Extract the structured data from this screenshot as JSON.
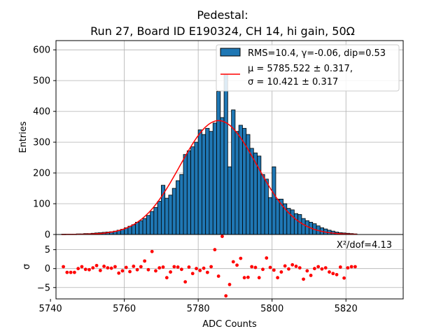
{
  "chart_data": [
    {
      "type": "bar",
      "panel": "histogram",
      "title_line1": "Pedestal:",
      "title_line2": "Run 27, Board ID E190324, CH 14, hi gain, 50Ω",
      "xlabel": "",
      "ylabel": "Entries",
      "xlim": [
        5741.5,
        5835.5
      ],
      "ylim": [
        0,
        630
      ],
      "yticks": [
        0,
        100,
        200,
        300,
        400,
        500,
        600
      ],
      "grid": true,
      "bin_width": 1,
      "bin_starts": [
        5743,
        5744,
        5745,
        5746,
        5747,
        5748,
        5749,
        5750,
        5751,
        5752,
        5753,
        5754,
        5755,
        5756,
        5757,
        5758,
        5759,
        5760,
        5761,
        5762,
        5763,
        5764,
        5765,
        5766,
        5767,
        5768,
        5769,
        5770,
        5771,
        5772,
        5773,
        5774,
        5775,
        5776,
        5777,
        5778,
        5779,
        5780,
        5781,
        5782,
        5783,
        5784,
        5785,
        5786,
        5787,
        5788,
        5789,
        5790,
        5791,
        5792,
        5793,
        5794,
        5795,
        5796,
        5797,
        5798,
        5799,
        5800,
        5801,
        5802,
        5803,
        5804,
        5805,
        5806,
        5807,
        5808,
        5809,
        5810,
        5811,
        5812,
        5813,
        5814,
        5815,
        5816,
        5817,
        5818,
        5819,
        5820,
        5821,
        5822
      ],
      "counts": [
        1,
        1,
        1,
        1,
        2,
        2,
        3,
        3,
        4,
        5,
        6,
        7,
        8,
        9,
        11,
        14,
        17,
        22,
        27,
        32,
        40,
        45,
        52,
        62,
        75,
        88,
        108,
        160,
        118,
        128,
        150,
        175,
        195,
        260,
        272,
        285,
        300,
        340,
        325,
        345,
        335,
        362,
        465,
        380,
        520,
        220,
        405,
        335,
        355,
        345,
        325,
        280,
        265,
        255,
        195,
        180,
        120,
        220,
        115,
        115,
        100,
        85,
        80,
        68,
        65,
        52,
        45,
        40,
        35,
        28,
        22,
        18,
        14,
        11,
        8,
        6,
        5,
        4,
        3,
        2
      ],
      "legend": [
        {
          "label": "RMS=10.4, γ=-0.06, dip=0.53",
          "kind": "patch"
        },
        {
          "label": "μ = 5785.522 ± 0.317,",
          "kind": "line"
        },
        {
          "label": "σ = 10.421 ± 0.317",
          "kind": "none"
        }
      ],
      "legend_location": "upper right",
      "fit": {
        "type": "gaussian",
        "mu": 5785.522,
        "sigma": 10.421,
        "amplitude": 370,
        "x_range": [
          5743,
          5823
        ],
        "color": "#ff0000"
      },
      "colors": {
        "bar_fill": "#1f77b4",
        "bar_edge": "#000000",
        "fit_line": "#ff0000"
      }
    },
    {
      "type": "scatter",
      "panel": "residuals",
      "xlabel": "ADC Counts",
      "ylabel": "σ",
      "xlim": [
        5741.5,
        5835.5
      ],
      "ylim": [
        -8,
        9
      ],
      "xticks": [
        5740,
        5760,
        5780,
        5800,
        5820
      ],
      "yticks": [
        -5,
        0,
        5
      ],
      "grid": true,
      "annotation": "X²/dof=4.13",
      "x": [
        5743.5,
        5744.5,
        5745.5,
        5746.5,
        5747.5,
        5748.5,
        5749.5,
        5750.5,
        5751.5,
        5752.5,
        5753.5,
        5754.5,
        5755.5,
        5756.5,
        5757.5,
        5758.5,
        5759.5,
        5760.5,
        5761.5,
        5762.5,
        5763.5,
        5764.5,
        5765.5,
        5766.5,
        5767.5,
        5768.5,
        5769.5,
        5770.5,
        5771.5,
        5772.5,
        5773.5,
        5774.5,
        5775.5,
        5776.5,
        5777.5,
        5778.5,
        5779.5,
        5780.5,
        5781.5,
        5782.5,
        5783.5,
        5784.5,
        5785.5,
        5786.5,
        5787.5,
        5788.5,
        5789.5,
        5790.5,
        5791.5,
        5792.5,
        5793.5,
        5794.5,
        5795.5,
        5796.5,
        5797.5,
        5798.5,
        5799.5,
        5800.5,
        5801.5,
        5802.5,
        5803.5,
        5804.5,
        5805.5,
        5806.5,
        5807.5,
        5808.5,
        5809.5,
        5810.5,
        5811.5,
        5812.5,
        5813.5,
        5814.5,
        5815.5,
        5816.5,
        5817.5,
        5818.5,
        5819.5,
        5820.5,
        5821.5,
        5822.5
      ],
      "y": [
        0.5,
        -1.0,
        -1.0,
        -1.0,
        0.0,
        0.5,
        -0.2,
        -0.3,
        0.2,
        0.8,
        -0.5,
        0.6,
        0.2,
        0.1,
        0.5,
        -1.2,
        -0.6,
        0.3,
        -0.8,
        0.6,
        -0.3,
        0.5,
        2.0,
        -0.3,
        4.5,
        -0.6,
        0.2,
        0.4,
        -2.4,
        -0.9,
        0.5,
        0.4,
        -0.2,
        -3.5,
        0.4,
        -1.3,
        0.0,
        -0.5,
        0.1,
        -1.0,
        0.5,
        5.0,
        -2.0,
        8.5,
        -7.2,
        -4.2,
        1.8,
        0.9,
        2.7,
        -2.4,
        -2.3,
        0.5,
        0.3,
        -2.4,
        -0.2,
        2.8,
        0.3,
        -0.4,
        -2.4,
        -0.9,
        0.7,
        -0.1,
        1.0,
        0.6,
        0.2,
        -2.8,
        -0.6,
        -1.8,
        0.0,
        0.5,
        -0.1,
        0.2,
        -0.9,
        -1.3,
        -1.6,
        0.4,
        -2.5,
        0.2,
        0.5,
        0.5
      ],
      "colors": {
        "point": "#ff0000"
      }
    }
  ]
}
